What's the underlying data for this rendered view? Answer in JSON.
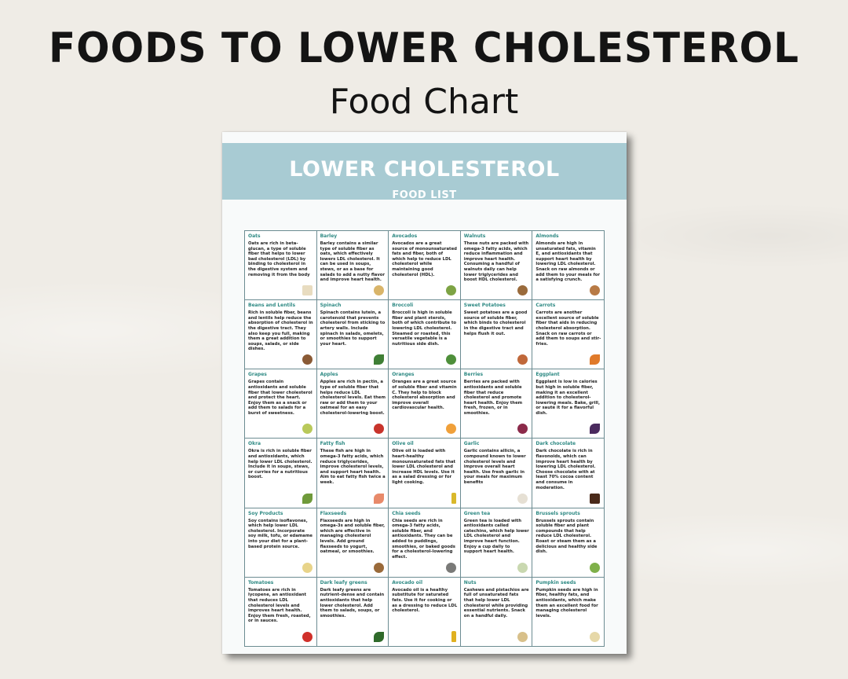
{
  "header": {
    "title": "FOODS TO LOWER CHOLESTEROL",
    "subtitle": "Food Chart"
  },
  "sheet": {
    "banner_title": "LOWER CHOLESTEROL",
    "banner_subtitle": "FOOD LIST"
  },
  "foods": [
    {
      "name": "Oats",
      "description": "Oats are rich in beta-glucan, a type of soluble fiber that helps to lower bad cholesterol (LDL) by binding to cholesterol in the digestive system and removing it from the body",
      "icon": "oats-icon",
      "color": "#e8dcc0",
      "shape": "block"
    },
    {
      "name": "Barley",
      "description": "Barley contains a similar type of soluble fiber as oats, which effectively lowers LDL cholesterol. It can be used in soups, stews, or as a base for salads to add a nutty flavor and improve heart health.",
      "icon": "barley-icon",
      "color": "#d9b56a",
      "shape": "round"
    },
    {
      "name": "Avocados",
      "description": "Avocados are a great source of monounsaturated fats and fiber, both of which help to reduce LDL cholesterol while maintaining good cholesterol (HDL).",
      "icon": "avocado-icon",
      "color": "#7da344",
      "shape": "round"
    },
    {
      "name": "Walnuts",
      "description": "These nuts are packed with omega-3 fatty acids, which reduce inflammation and improve heart health. Consuming a handful of walnuts daily can help lower triglycerides and boost HDL cholesterol.",
      "icon": "walnut-icon",
      "color": "#9a6b3c",
      "shape": "round"
    },
    {
      "name": "Almonds",
      "description": "Almonds are high in unsaturated fats, vitamin E, and antioxidants that support heart health by lowering LDL cholesterol. Snack on raw almonds or add them to your meals for a satisfying crunch.",
      "icon": "almond-icon",
      "color": "#b87a45",
      "shape": "round"
    },
    {
      "name": "Beans and Lentils",
      "description": "Rich in soluble fiber, beans and lentils help reduce the absorption of cholesterol in the digestive tract. They also keep you full, making them a great addition to soups, salads, or side dishes.",
      "icon": "beans-icon",
      "color": "#8a5a35",
      "shape": "round"
    },
    {
      "name": "Spinach",
      "description": "Spinach contains lutein, a carotenoid that prevents cholesterol from sticking to artery walls. Include spinach in salads, omelets, or smoothies to support your heart.",
      "icon": "spinach-icon",
      "color": "#3f7f35",
      "shape": "leaf"
    },
    {
      "name": "Broccoli",
      "description": "Broccoli is high in soluble fiber and plant sterols, both of which contribute to lowering LDL cholesterol. Steamed or roasted, this versatile vegetable is a nutritious side dish.",
      "icon": "broccoli-icon",
      "color": "#4e8f3a",
      "shape": "round"
    },
    {
      "name": "Sweet Potatoes",
      "description": "Sweet potatoes are a good source of soluble fiber, which binds to cholesterol in the digestive tract and helps flush it out.",
      "icon": "sweet-potato-icon",
      "color": "#c0683a",
      "shape": "round"
    },
    {
      "name": "Carrots",
      "description": "Carrots are another excellent source of soluble fiber that aids in reducing cholesterol absorption. Snack on raw carrots or add them to soups and stir-fries.",
      "icon": "carrot-icon",
      "color": "#e07a2a",
      "shape": "leaf"
    },
    {
      "name": "Grapes",
      "description": "Grapes contain antioxidants and soluble fiber that lower cholesterol and protect the heart. Enjoy them as a snack or add them to salads for a burst of sweetness.",
      "icon": "grapes-icon",
      "color": "#b9c95a",
      "shape": "round"
    },
    {
      "name": "Apples",
      "description": "Apples are rich in pectin, a type of soluble fiber that helps reduce LDL cholesterol levels. Eat them raw or add them to your oatmeal for an easy cholesterol-lowering boost.",
      "icon": "apple-icon",
      "color": "#c8342c",
      "shape": "round"
    },
    {
      "name": "Oranges",
      "description": "Oranges are a great source of soluble fiber and vitamin C. They help to block cholesterol absorption and improve overall cardiovascular health.",
      "icon": "orange-icon",
      "color": "#f0a03a",
      "shape": "round"
    },
    {
      "name": "Berries",
      "description": "Berries are packed with antioxidants and soluble fiber that reduce cholesterol and promote heart health. Enjoy them fresh, frozen, or in smoothies.",
      "icon": "berries-icon",
      "color": "#8b2a4a",
      "shape": "round"
    },
    {
      "name": "Eggplant",
      "description": "Eggplant is low in calories but high in soluble fiber, making it an excellent addition to cholesterol-lowering meals. Bake, grill, or sauté it for a flavorful dish.",
      "icon": "eggplant-icon",
      "color": "#4a2a5e",
      "shape": "leaf"
    },
    {
      "name": "Okra",
      "description": "Okra is rich in soluble fiber and antioxidants, which help lower LDL cholesterol. Include it in soups, stews, or curries for a nutritious boost.",
      "icon": "okra-icon",
      "color": "#6f9a3a",
      "shape": "leaf"
    },
    {
      "name": "Fatty fish",
      "description": "These fish are high in omega-3 fatty acids, which reduce triglycerides, improve cholesterol levels, and support heart health. Aim to eat fatty fish twice a week.",
      "icon": "fish-icon",
      "color": "#e88a6a",
      "shape": "leaf"
    },
    {
      "name": "Olive oil",
      "description": "Olive oil is loaded with heart-healthy monounsaturated fats that lower LDL cholesterol and increase HDL levels. Use it as a salad dressing or for light cooking.",
      "icon": "olive-oil-icon",
      "color": "#d9b82a",
      "shape": "bottle"
    },
    {
      "name": "Garlic",
      "description": "Garlic contains allicin, a compound known to lower cholesterol levels and improve overall heart health. Use fresh garlic in your meals for maximum benefits",
      "icon": "garlic-icon",
      "color": "#e6e0d4",
      "shape": "round"
    },
    {
      "name": "Dark chocolate",
      "description": "Dark chocolate is rich in flavonoids, which can improve heart health by lowering LDL cholesterol. Choose chocolate with at least 70% cocoa content and consume in moderation.",
      "icon": "chocolate-icon",
      "color": "#4a2a1a",
      "shape": "block"
    },
    {
      "name": "Soy Products",
      "description": "Soy contains isoflavones, which help lower LDL cholesterol. Incorporate soy milk, tofu, or edamame into your diet for a plant-based protein source.",
      "icon": "soy-icon",
      "color": "#e8d48a",
      "shape": "round"
    },
    {
      "name": "Flaxseeds",
      "description": "Flaxseeds are high in omega-3s and soluble fiber, which are effective in managing cholesterol levels. Add ground flaxseeds to yogurt, oatmeal, or smoothies.",
      "icon": "flaxseed-icon",
      "color": "#9a6a3a",
      "shape": "round"
    },
    {
      "name": "Chia seeds",
      "description": "Chia seeds are rich in omega-3 fatty acids, soluble fiber, and antioxidants. They can be added to puddings, smoothies, or baked goods for a cholesterol-lowering effect.",
      "icon": "chia-icon",
      "color": "#7a7a78",
      "shape": "round"
    },
    {
      "name": "Green tea",
      "description": "Green tea is loaded with antioxidants called catechins, which help lower LDL cholesterol and improve heart function. Enjoy a cup daily to support heart health.",
      "icon": "green-tea-icon",
      "color": "#c9d8b0",
      "shape": "round"
    },
    {
      "name": "Brussels sprouts",
      "description": "Brussels sprouts contain soluble fiber and plant compounds that help reduce LDL cholesterol. Roast or steam them as a delicious and healthy side dish.",
      "icon": "brussels-sprouts-icon",
      "color": "#7fb04a",
      "shape": "round"
    },
    {
      "name": "Tomatoes",
      "description": "Tomatoes are rich in lycopene, an antioxidant that reduces LDL cholesterol levels and improves heart health. Enjoy them fresh, roasted, or in sauces.",
      "icon": "tomato-icon",
      "color": "#d0302a",
      "shape": "round"
    },
    {
      "name": "Dark leafy greens",
      "description": "Dark leafy greens are nutrient-dense and contain antioxidants that help lower cholesterol. Add them to salads, soups, or smoothies.",
      "icon": "leafy-greens-icon",
      "color": "#2f6a2a",
      "shape": "leaf"
    },
    {
      "name": "Avocado oil",
      "description": "Avocado oil is a healthy substitute for saturated fats. Use it for cooking or as a dressing to reduce LDL cholesterol.",
      "icon": "avocado-oil-icon",
      "color": "#e0b020",
      "shape": "bottle"
    },
    {
      "name": "Nuts",
      "description": "Cashews and pistachios are full of unsaturated fats that help lower LDL cholesterol while providing essential nutrients. Snack on a handful daily.",
      "icon": "nuts-icon",
      "color": "#d8c08a",
      "shape": "round"
    },
    {
      "name": "Pumpkin seeds",
      "description": "Pumpkin seeds are high in fiber, healthy fats, and antioxidants, which make them an excellent food for managing cholesterol levels.",
      "icon": "pumpkin-seeds-icon",
      "color": "#e6d8a8",
      "shape": "round"
    }
  ]
}
